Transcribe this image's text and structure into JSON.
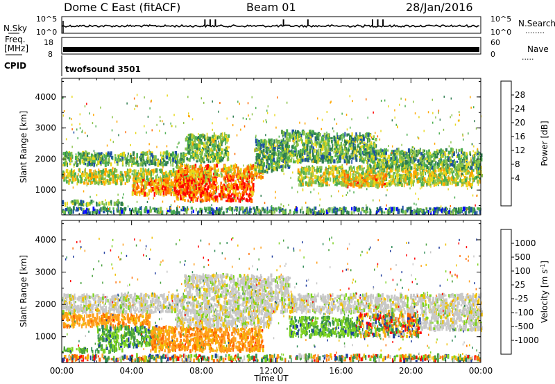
{
  "header": {
    "title": "Dome C East (fitACF)",
    "beam": "Beam 01",
    "date": "28/Jan/2016"
  },
  "status_panels": {
    "nsky_label": "N.Sky",
    "nsearch_label": "N.Search",
    "nsky_ticks": [
      "10^5",
      "10^0"
    ],
    "nsearch_ticks": [
      "10^5",
      "10^0"
    ],
    "freq_label": "Freq.",
    "freq_unit": "[MHz]",
    "freq_ticks": [
      "18",
      "8"
    ],
    "nave_label": "Nave",
    "nave_ticks": [
      "60",
      "0"
    ],
    "cpid_label": "CPID",
    "cpid_value": "twofsound 3501",
    "nsearch_dots": "........",
    "nave_dots": "....."
  },
  "chart_data": [
    {
      "type": "heatmap",
      "name": "power",
      "ylabel": "Slant Range [km]",
      "ylim": [
        200,
        4600
      ],
      "yticks": [
        1000,
        2000,
        3000,
        4000
      ],
      "xlim": [
        0,
        24
      ],
      "colorbar": {
        "label": "Power [dB]",
        "range": [
          0,
          32
        ],
        "ticks": [
          "4",
          "8",
          "12",
          "16",
          "20",
          "24",
          "28"
        ],
        "colors": [
          "#0000ff",
          "#1d4fa6",
          "#2e7d4f",
          "#4caf50",
          "#8bc34a",
          "#e8d81c",
          "#ffa600",
          "#ff6b00",
          "#ff0000"
        ]
      },
      "bands": [
        {
          "t0": 0.0,
          "t1": 24.0,
          "r0": 250,
          "r1": 420,
          "level": 0.3
        },
        {
          "t0": 0.0,
          "t1": 3.5,
          "r0": 520,
          "r1": 640,
          "level": 0.4
        },
        {
          "t0": 0.0,
          "t1": 8.5,
          "r0": 1200,
          "r1": 1650,
          "level": 0.55
        },
        {
          "t0": 0.0,
          "t1": 7.0,
          "r0": 1800,
          "r1": 2200,
          "level": 0.4
        },
        {
          "t0": 4.0,
          "t1": 8.0,
          "r0": 850,
          "r1": 1350,
          "level": 0.75
        },
        {
          "t0": 6.5,
          "t1": 11.0,
          "r0": 650,
          "r1": 1500,
          "level": 0.85
        },
        {
          "t0": 6.5,
          "t1": 11.5,
          "r0": 1400,
          "r1": 1800,
          "level": 0.7
        },
        {
          "t0": 7.0,
          "t1": 9.5,
          "r0": 1900,
          "r1": 2800,
          "level": 0.45
        },
        {
          "t0": 11.0,
          "t1": 13.0,
          "r0": 1600,
          "r1": 2600,
          "level": 0.4
        },
        {
          "t0": 12.5,
          "t1": 14.5,
          "r0": 1900,
          "r1": 2900,
          "level": 0.4
        },
        {
          "t0": 14.5,
          "t1": 18.0,
          "r0": 1900,
          "r1": 2800,
          "level": 0.4
        },
        {
          "t0": 13.5,
          "t1": 24.0,
          "r0": 1150,
          "r1": 1750,
          "level": 0.55
        },
        {
          "t0": 16.0,
          "t1": 18.5,
          "r0": 1100,
          "r1": 1500,
          "level": 0.7
        },
        {
          "t0": 17.5,
          "t1": 24.0,
          "r0": 1700,
          "r1": 2300,
          "level": 0.4
        }
      ]
    },
    {
      "type": "heatmap",
      "name": "velocity",
      "ylabel": "Slant Range [km]",
      "xlabel": "Time UT",
      "ylim": [
        200,
        4600
      ],
      "yticks": [
        1000,
        2000,
        3000,
        4000
      ],
      "xlim": [
        0,
        24
      ],
      "xticks": [
        "00:00",
        "04:00",
        "08:00",
        "12:00",
        "16:00",
        "20:00",
        "00:00"
      ],
      "colorbar": {
        "label": "Velocity [m s-1]",
        "ticks": [
          "1000",
          "500",
          "100",
          "25",
          "-25",
          "-100",
          "-500",
          "-1000"
        ],
        "colors": [
          "#1e3c9e",
          "#2e8b57",
          "#47a03c",
          "#7ed321",
          "#c8c8c8",
          "#f0c000",
          "#ff9f1c",
          "#ff6a00",
          "#ff0000"
        ]
      },
      "bands": [
        {
          "t0": 0.0,
          "t1": 24.0,
          "r0": 250,
          "r1": 420,
          "vel": "mixed"
        },
        {
          "t0": 0.0,
          "t1": 3.5,
          "r0": 520,
          "r1": 640,
          "vel": "positive"
        },
        {
          "t0": 0.0,
          "t1": 5.0,
          "r0": 1300,
          "r1": 1700,
          "vel": "negative"
        },
        {
          "t0": 0.0,
          "t1": 24.0,
          "r0": 1750,
          "r1": 2300,
          "vel": "near-zero"
        },
        {
          "t0": 2.0,
          "t1": 5.5,
          "r0": 700,
          "r1": 1300,
          "vel": "positive"
        },
        {
          "t0": 5.0,
          "t1": 11.5,
          "r0": 550,
          "r1": 1300,
          "vel": "negative"
        },
        {
          "t0": 6.5,
          "t1": 12.0,
          "r0": 1300,
          "r1": 1800,
          "vel": "near-zero"
        },
        {
          "t0": 7.0,
          "t1": 13.0,
          "r0": 2300,
          "r1": 2900,
          "vel": "near-zero"
        },
        {
          "t0": 13.0,
          "t1": 17.0,
          "r0": 1000,
          "r1": 1600,
          "vel": "positive"
        },
        {
          "t0": 17.0,
          "t1": 20.5,
          "r0": 1000,
          "r1": 1700,
          "vel": "mixed"
        },
        {
          "t0": 20.5,
          "t1": 24.0,
          "r0": 1200,
          "r1": 1800,
          "vel": "near-zero"
        }
      ]
    }
  ]
}
